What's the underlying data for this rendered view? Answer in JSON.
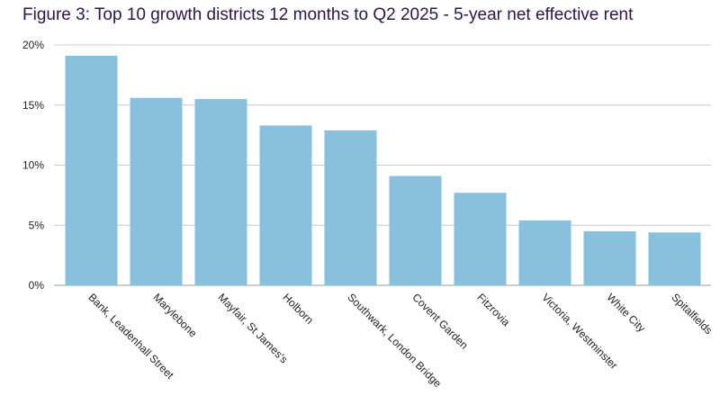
{
  "chart_data": {
    "type": "bar",
    "title": "Figure 3: Top 10 growth districts 12 months to Q2 2025 - 5-year net effective rent",
    "xlabel": "",
    "ylabel": "",
    "categories": [
      "Bank, Leadenhall Street",
      "Marylebone",
      "Mayfair, St James's",
      "Holborn",
      "Southwark, London Bridge",
      "Covent Garden",
      "Fitzrovia",
      "Victoria, Westminster",
      "White City",
      "Spitalfields"
    ],
    "values": [
      19.1,
      15.6,
      15.5,
      13.3,
      12.9,
      9.1,
      7.7,
      5.4,
      4.5,
      4.4
    ],
    "ylim": [
      0,
      20
    ],
    "yticks": [
      0,
      5,
      10,
      15,
      20
    ],
    "ytick_labels": [
      "0%",
      "5%",
      "10%",
      "15%",
      "20%"
    ],
    "grid": true,
    "legend": "none",
    "bar_color": "#89c0dc",
    "grid_color": "#cccccc",
    "title_color": "#2d1548"
  }
}
